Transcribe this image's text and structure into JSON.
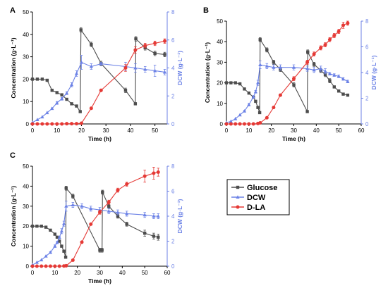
{
  "legend": {
    "entries": [
      {
        "key": "glucose",
        "label": "Glucose",
        "color": "#4d4d4d",
        "marker": "square"
      },
      {
        "key": "dcw",
        "label": "DCW",
        "color": "#6c82e6",
        "marker": "triangle"
      },
      {
        "key": "dla",
        "label": "D-LA",
        "color": "#e53935",
        "marker": "circle"
      }
    ]
  },
  "chart_data": [
    {
      "type": "line",
      "panel_label": "A",
      "xlabel": "Time (h)",
      "ylabel": "Concentration (g·L⁻¹)",
      "y2label": "DCW (g·L⁻¹)",
      "xlim": [
        0,
        55
      ],
      "xticks": [
        0,
        10,
        20,
        30,
        40,
        50
      ],
      "ylim": [
        0,
        50
      ],
      "yticks": [
        0,
        10,
        20,
        30,
        40,
        50
      ],
      "y2lim": [
        0,
        8
      ],
      "y2ticks": [
        0,
        2,
        4,
        6,
        8
      ],
      "series": [
        {
          "key": "glucose",
          "name": "Glucose",
          "axis": "left",
          "points": [
            [
              0,
              20
            ],
            [
              2,
              20
            ],
            [
              4,
              20
            ],
            [
              6,
              19.5
            ],
            [
              8,
              15
            ],
            [
              10,
              14
            ],
            [
              12,
              13
            ],
            [
              14,
              11
            ],
            [
              16,
              9
            ],
            [
              18,
              8
            ],
            [
              19.5,
              5.5
            ],
            [
              19.8,
              42
            ],
            [
              24,
              35.5
            ],
            [
              28,
              27
            ],
            [
              38,
              15
            ],
            [
              42,
              9
            ],
            [
              42.2,
              38
            ],
            [
              46,
              34
            ],
            [
              50,
              31.5
            ],
            [
              54,
              31
            ]
          ],
          "err": [
            0,
            0,
            0,
            0,
            0.5,
            0.5,
            0.5,
            0.5,
            0.5,
            0.5,
            0.5,
            1,
            1,
            1,
            1,
            0.5,
            1,
            1,
            1,
            1
          ]
        },
        {
          "key": "dcw",
          "name": "DCW",
          "axis": "right",
          "points": [
            [
              0,
              0.1
            ],
            [
              2,
              0.3
            ],
            [
              4,
              0.5
            ],
            [
              6,
              0.8
            ],
            [
              8,
              1.1
            ],
            [
              10,
              1.5
            ],
            [
              12,
              1.8
            ],
            [
              14,
              2.2
            ],
            [
              16,
              2.8
            ],
            [
              18,
              3.6
            ],
            [
              20,
              4.4
            ],
            [
              24,
              4.1
            ],
            [
              28,
              4.3
            ],
            [
              38,
              4.1
            ],
            [
              42,
              4.0
            ],
            [
              46,
              3.9
            ],
            [
              50,
              3.8
            ],
            [
              54,
              3.7
            ]
          ],
          "err": [
            0,
            0,
            0,
            0,
            0.05,
            0.1,
            0.1,
            0.1,
            0.15,
            0.2,
            0.5,
            0.2,
            0.1,
            0.3,
            0.3,
            0.2,
            0.4,
            0.2
          ]
        },
        {
          "key": "dla",
          "name": "D-LA",
          "axis": "left",
          "points": [
            [
              0,
              0
            ],
            [
              2,
              0
            ],
            [
              4,
              0
            ],
            [
              6,
              0
            ],
            [
              8,
              0
            ],
            [
              10,
              0
            ],
            [
              12,
              0
            ],
            [
              14,
              0.1
            ],
            [
              16,
              0.1
            ],
            [
              18,
              0.1
            ],
            [
              20,
              0.3
            ],
            [
              24,
              7
            ],
            [
              28,
              15
            ],
            [
              38,
              25
            ],
            [
              42,
              33
            ],
            [
              46,
              35
            ],
            [
              50,
              36
            ],
            [
              54,
              37
            ]
          ],
          "err": [
            0,
            0,
            0,
            0,
            0,
            0,
            0,
            0,
            0,
            0,
            0,
            0.5,
            0.5,
            1.5,
            1.5,
            1,
            1,
            1
          ]
        }
      ]
    },
    {
      "type": "line",
      "panel_label": "B",
      "xlabel": "Time (h)",
      "ylabel": "Concentration (g·L⁻¹)",
      "y2label": "DCW (g·L⁻¹)",
      "xlim": [
        0,
        60
      ],
      "xticks": [
        0,
        10,
        20,
        30,
        40,
        50,
        60
      ],
      "ylim": [
        0,
        50
      ],
      "yticks": [
        0,
        10,
        20,
        30,
        40,
        50
      ],
      "y2lim": [
        0,
        8
      ],
      "y2ticks": [
        0,
        2,
        4,
        6,
        8
      ],
      "series": [
        {
          "key": "glucose",
          "name": "Glucose",
          "axis": "left",
          "points": [
            [
              0,
              20
            ],
            [
              2,
              20
            ],
            [
              4,
              20
            ],
            [
              6,
              19.5
            ],
            [
              8,
              17
            ],
            [
              10,
              15
            ],
            [
              12,
              13
            ],
            [
              13,
              11
            ],
            [
              14,
              8
            ],
            [
              14.8,
              5.5
            ],
            [
              15,
              41
            ],
            [
              18,
              36
            ],
            [
              21,
              30
            ],
            [
              24,
              26.5
            ],
            [
              30,
              19
            ],
            [
              36,
              6
            ],
            [
              36.2,
              35
            ],
            [
              39,
              29
            ],
            [
              42,
              26
            ],
            [
              44,
              24
            ],
            [
              46,
              21
            ],
            [
              48,
              18
            ],
            [
              50,
              16
            ],
            [
              52,
              14.5
            ],
            [
              54,
              14
            ]
          ],
          "err": [
            0,
            0,
            0,
            0,
            0.5,
            0.5,
            0.5,
            0.5,
            0.5,
            0.5,
            1,
            1,
            1,
            1,
            1,
            0.5,
            1,
            1,
            1,
            1,
            1,
            0.5,
            0.5,
            0.5,
            0.5
          ]
        },
        {
          "key": "dcw",
          "name": "DCW",
          "axis": "right",
          "points": [
            [
              0,
              0.1
            ],
            [
              2,
              0.2
            ],
            [
              4,
              0.4
            ],
            [
              6,
              0.7
            ],
            [
              8,
              1.0
            ],
            [
              10,
              1.5
            ],
            [
              12,
              2.1
            ],
            [
              13,
              2.5
            ],
            [
              14,
              3.2
            ],
            [
              15,
              4.6
            ],
            [
              18,
              4.5
            ],
            [
              21,
              4.4
            ],
            [
              24,
              4.4
            ],
            [
              30,
              4.4
            ],
            [
              36,
              4.3
            ],
            [
              39,
              4.2
            ],
            [
              42,
              4.3
            ],
            [
              44,
              4.1
            ],
            [
              46,
              3.9
            ],
            [
              48,
              3.8
            ],
            [
              50,
              3.7
            ],
            [
              52,
              3.5
            ],
            [
              54,
              3.3
            ]
          ],
          "err": [
            0,
            0,
            0,
            0,
            0.05,
            0.1,
            0.1,
            0.1,
            0.2,
            0.3,
            0.2,
            0.2,
            0.2,
            0.2,
            0.2,
            0.2,
            0.2,
            0.2,
            0.1,
            0.1,
            0.1,
            0.1,
            0.1
          ]
        },
        {
          "key": "dla",
          "name": "D-LA",
          "axis": "left",
          "points": [
            [
              0,
              0
            ],
            [
              2,
              0
            ],
            [
              4,
              0
            ],
            [
              6,
              0
            ],
            [
              8,
              0
            ],
            [
              10,
              0
            ],
            [
              12,
              0
            ],
            [
              14,
              0.2
            ],
            [
              15,
              0.5
            ],
            [
              18,
              3
            ],
            [
              21,
              8
            ],
            [
              24,
              14
            ],
            [
              30,
              22
            ],
            [
              36,
              30
            ],
            [
              39,
              34
            ],
            [
              42,
              37
            ],
            [
              44,
              38.5
            ],
            [
              46,
              41
            ],
            [
              48,
              43
            ],
            [
              50,
              45
            ],
            [
              52,
              48
            ],
            [
              54,
              49
            ]
          ],
          "err": [
            0,
            0,
            0,
            0,
            0,
            0,
            0,
            0,
            0,
            0.5,
            0.5,
            0.5,
            1,
            1,
            1,
            1,
            1,
            1,
            1,
            1,
            1.5,
            1
          ]
        }
      ]
    },
    {
      "type": "line",
      "panel_label": "C",
      "xlabel": "Time (h)",
      "ylabel": "Concentration (g·L⁻¹)",
      "y2label": "DCW (g·L⁻¹)",
      "xlim": [
        0,
        60
      ],
      "xticks": [
        0,
        10,
        20,
        30,
        40,
        50,
        60
      ],
      "ylim": [
        0,
        50
      ],
      "yticks": [
        0,
        10,
        20,
        30,
        40,
        50
      ],
      "y2lim": [
        0,
        8
      ],
      "y2ticks": [
        0,
        2,
        4,
        6,
        8
      ],
      "series": [
        {
          "key": "glucose",
          "name": "Glucose",
          "axis": "left",
          "points": [
            [
              0,
              20
            ],
            [
              2,
              20
            ],
            [
              4,
              20
            ],
            [
              6,
              19.5
            ],
            [
              8,
              18
            ],
            [
              10,
              16
            ],
            [
              11,
              14.5
            ],
            [
              12,
              12.5
            ],
            [
              13,
              10
            ],
            [
              14,
              7.5
            ],
            [
              14.8,
              4.5
            ],
            [
              15,
              39
            ],
            [
              18,
              35
            ],
            [
              30,
              8
            ],
            [
              31,
              8
            ],
            [
              31.2,
              37
            ],
            [
              34,
              30
            ],
            [
              38,
              25
            ],
            [
              42,
              21
            ],
            [
              50,
              16.5
            ],
            [
              54,
              15
            ],
            [
              56,
              14.5
            ]
          ],
          "err": [
            0,
            0,
            0,
            0,
            0.5,
            0.5,
            0.5,
            0.5,
            0.5,
            0.5,
            0.5,
            1,
            1,
            1,
            1,
            1,
            1,
            1,
            1,
            1.5,
            1.5,
            1.5
          ]
        },
        {
          "key": "dcw",
          "name": "DCW",
          "axis": "right",
          "points": [
            [
              0,
              0.1
            ],
            [
              2,
              0.3
            ],
            [
              4,
              0.5
            ],
            [
              6,
              0.8
            ],
            [
              8,
              1.1
            ],
            [
              10,
              1.6
            ],
            [
              11,
              1.9
            ],
            [
              12,
              2.3
            ],
            [
              13,
              2.8
            ],
            [
              14,
              3.4
            ],
            [
              15,
              4.8
            ],
            [
              18,
              4.9
            ],
            [
              22,
              4.8
            ],
            [
              26,
              4.6
            ],
            [
              30,
              4.5
            ],
            [
              34,
              4.4
            ],
            [
              38,
              4.3
            ],
            [
              42,
              4.2
            ],
            [
              50,
              4.1
            ],
            [
              54,
              4.0
            ],
            [
              56,
              4.0
            ]
          ],
          "err": [
            0,
            0,
            0,
            0,
            0.05,
            0.1,
            0.1,
            0.1,
            0.2,
            0.2,
            0.4,
            0.2,
            0.2,
            0.2,
            0.2,
            0.2,
            0.2,
            0.2,
            0.2,
            0.2,
            0.2
          ]
        },
        {
          "key": "dla",
          "name": "D-LA",
          "axis": "left",
          "points": [
            [
              0,
              0
            ],
            [
              2,
              0
            ],
            [
              4,
              0
            ],
            [
              6,
              0
            ],
            [
              8,
              0
            ],
            [
              10,
              0
            ],
            [
              12,
              0
            ],
            [
              14,
              0.1
            ],
            [
              15,
              0.2
            ],
            [
              18,
              3
            ],
            [
              22,
              12
            ],
            [
              26,
              21
            ],
            [
              30,
              27
            ],
            [
              34,
              32
            ],
            [
              38,
              38
            ],
            [
              42,
              41
            ],
            [
              50,
              45
            ],
            [
              54,
              46.5
            ],
            [
              56,
              47
            ]
          ],
          "err": [
            0,
            0,
            0,
            0,
            0,
            0,
            0,
            0,
            0,
            0.5,
            0.5,
            0.5,
            1,
            1,
            1,
            1,
            3,
            3,
            2
          ]
        }
      ]
    }
  ]
}
